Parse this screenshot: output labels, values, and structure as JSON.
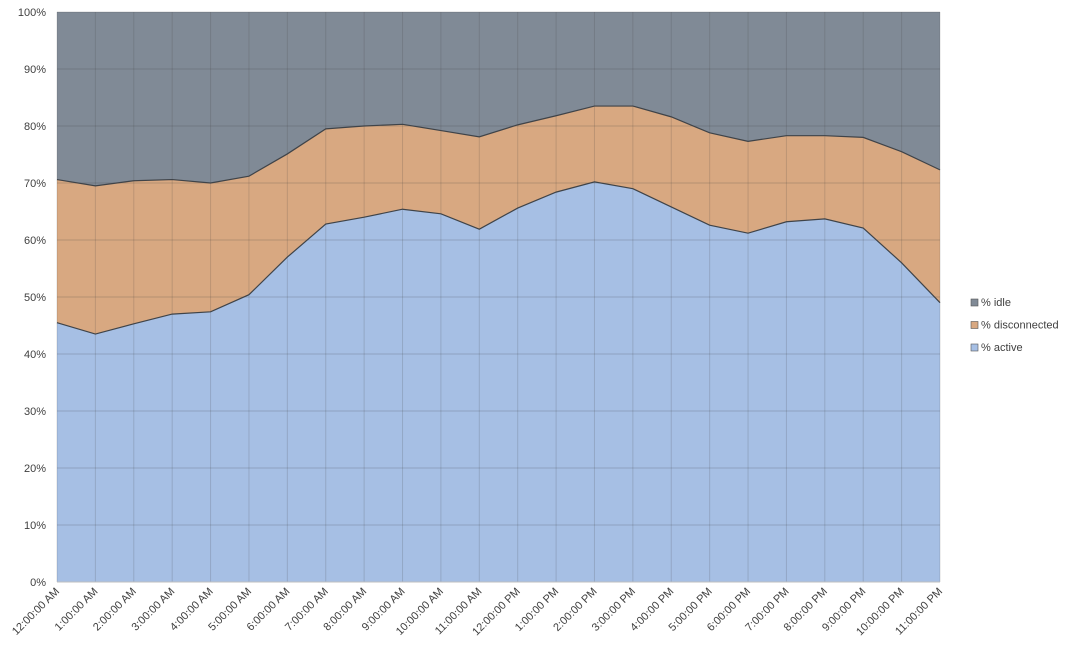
{
  "chart_data": {
    "type": "area",
    "stacked": "percent",
    "title": "",
    "xlabel": "",
    "ylabel": "",
    "ylim": [
      0,
      100
    ],
    "y_ticks": [
      "0%",
      "10%",
      "20%",
      "30%",
      "40%",
      "50%",
      "60%",
      "70%",
      "80%",
      "90%",
      "100%"
    ],
    "grid": true,
    "legend_position": "right",
    "categories": [
      "12:00:00 AM",
      "1:00:00 AM",
      "2:00:00 AM",
      "3:00:00 AM",
      "4:00:00 AM",
      "5:00:00 AM",
      "6:00:00 AM",
      "7:00:00 AM",
      "8:00:00 AM",
      "9:00:00 AM",
      "10:00:00 AM",
      "11:00:00 AM",
      "12:00:00 PM",
      "1:00:00 PM",
      "2:00:00 PM",
      "3:00:00 PM",
      "4:00:00 PM",
      "5:00:00 PM",
      "6:00:00 PM",
      "7:00:00 PM",
      "8:00:00 PM",
      "9:00:00 PM",
      "10:00:00 PM",
      "11:00:00 PM"
    ],
    "series": [
      {
        "name": "% active",
        "color": "#a6bfe4",
        "values": [
          45.5,
          43.5,
          45.3,
          47.0,
          47.4,
          50.4,
          57.0,
          62.8,
          64.0,
          65.4,
          64.6,
          61.9,
          65.6,
          68.4,
          70.2,
          69.0,
          65.8,
          62.6,
          61.2,
          63.2,
          63.7,
          62.1,
          56.0,
          49.0
        ]
      },
      {
        "name": "% disconnected",
        "color": "#d8a881",
        "values": [
          25.1,
          26.0,
          25.1,
          23.6,
          22.6,
          20.8,
          18.1,
          16.7,
          16.0,
          14.9,
          14.6,
          16.2,
          14.6,
          13.4,
          13.3,
          14.5,
          15.8,
          16.2,
          16.1,
          15.1,
          14.6,
          15.9,
          19.5,
          23.3
        ]
      },
      {
        "name": "% idle",
        "color": "#808a96",
        "values": [
          29.4,
          30.5,
          29.6,
          29.4,
          30.0,
          28.8,
          24.9,
          20.5,
          20.0,
          19.7,
          20.8,
          21.9,
          19.8,
          18.2,
          16.5,
          16.5,
          18.4,
          21.2,
          22.7,
          21.7,
          21.7,
          22.0,
          24.5,
          27.7
        ]
      }
    ],
    "legend_order": [
      "% idle",
      "% disconnected",
      "% active"
    ]
  }
}
